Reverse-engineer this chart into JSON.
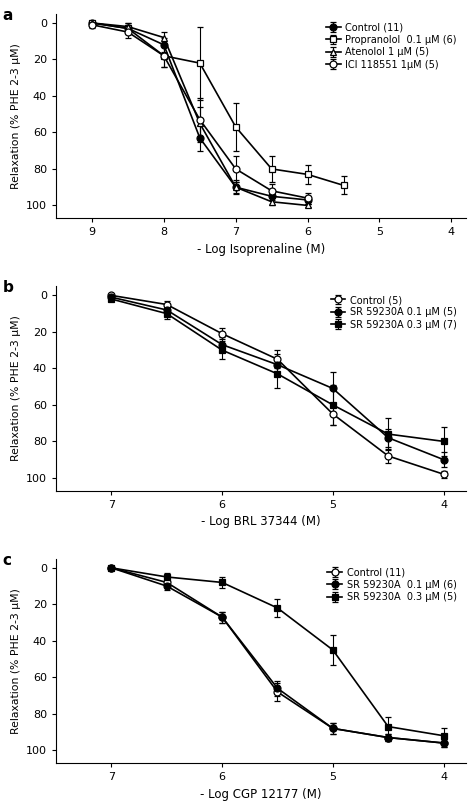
{
  "panel_a": {
    "title": "a",
    "xlabel": "- Log Isoprenaline (M)",
    "ylabel": "Relaxation (% PHE 2-3 μM)",
    "xlim_min": 4,
    "xlim_max": 9.5,
    "ylim_bottom": 107,
    "ylim_top": -5,
    "xticks": [
      9,
      8,
      7,
      6,
      5,
      4
    ],
    "yticks": [
      0,
      20,
      40,
      60,
      80,
      100
    ],
    "series": [
      {
        "label": "Control (11)",
        "marker": "o",
        "fillstyle": "full",
        "x": [
          9.0,
          8.5,
          8.0,
          7.5,
          7.0,
          6.5,
          6.0
        ],
        "y": [
          0,
          3,
          12,
          63,
          90,
          95,
          97
        ],
        "yerr": [
          1,
          2,
          4,
          7,
          3,
          2,
          2
        ]
      },
      {
        "label": "Propranolol  0.1 μM (6)",
        "marker": "s",
        "fillstyle": "none",
        "x": [
          9.0,
          8.5,
          8.0,
          7.5,
          7.0,
          6.5,
          6.0,
          5.5
        ],
        "y": [
          0,
          3,
          18,
          22,
          57,
          80,
          83,
          89
        ],
        "yerr": [
          1,
          3,
          6,
          20,
          13,
          7,
          5,
          5
        ]
      },
      {
        "label": "Atenolol 1 μM (5)",
        "marker": "^",
        "fillstyle": "none",
        "x": [
          9.0,
          8.5,
          8.0,
          7.5,
          7.0,
          6.5,
          6.0
        ],
        "y": [
          0,
          2,
          8,
          55,
          90,
          98,
          100
        ],
        "yerr": [
          1,
          2,
          3,
          9,
          4,
          2,
          1
        ]
      },
      {
        "label": "ICI 118551 1μM (5)",
        "marker": "o",
        "fillstyle": "none",
        "x": [
          9.0,
          8.5,
          8.0,
          7.5,
          7.0,
          6.5,
          6.0
        ],
        "y": [
          1,
          5,
          18,
          53,
          80,
          92,
          96
        ],
        "yerr": [
          2,
          3,
          6,
          12,
          7,
          4,
          3
        ]
      }
    ]
  },
  "panel_b": {
    "title": "b",
    "xlabel": "- Log BRL 37344 (M)",
    "ylabel": "Relaxation (% PHE 2-3 μM)",
    "xlim_min": 4,
    "xlim_max": 7.5,
    "ylim_bottom": 107,
    "ylim_top": -5,
    "xticks": [
      7,
      6,
      5,
      4
    ],
    "yticks": [
      0,
      20,
      40,
      60,
      80,
      100
    ],
    "series": [
      {
        "label": "Control (5)",
        "marker": "o",
        "fillstyle": "none",
        "x": [
          7.0,
          6.5,
          6.0,
          5.5,
          5.0,
          4.5,
          4.0
        ],
        "y": [
          0,
          5,
          21,
          35,
          65,
          88,
          98
        ],
        "yerr": [
          1,
          2,
          3,
          5,
          6,
          4,
          2
        ]
      },
      {
        "label": "SR 59230A 0.1 μM (5)",
        "marker": "o",
        "fillstyle": "full",
        "x": [
          7.0,
          6.5,
          6.0,
          5.5,
          5.0,
          4.5,
          4.0
        ],
        "y": [
          1,
          8,
          27,
          38,
          51,
          78,
          90
        ],
        "yerr": [
          1,
          3,
          4,
          6,
          9,
          5,
          4
        ]
      },
      {
        "label": "SR 59230A 0.3 μM (7)",
        "marker": "s",
        "fillstyle": "full",
        "x": [
          7.0,
          6.5,
          6.0,
          5.5,
          5.0,
          4.5,
          4.0
        ],
        "y": [
          2,
          10,
          30,
          43,
          60,
          76,
          80
        ],
        "yerr": [
          1,
          3,
          5,
          8,
          11,
          9,
          8
        ]
      }
    ]
  },
  "panel_c": {
    "title": "c",
    "xlabel": "- Log CGP 12177 (M)",
    "ylabel": "Relaxation (% PHE 2-3 μM)",
    "xlim_min": 4,
    "xlim_max": 7.5,
    "ylim_bottom": 107,
    "ylim_top": -5,
    "xticks": [
      7,
      6,
      5,
      4
    ],
    "yticks": [
      0,
      20,
      40,
      60,
      80,
      100
    ],
    "series": [
      {
        "label": "Control (11)",
        "marker": "o",
        "fillstyle": "none",
        "x": [
          7.0,
          6.5,
          6.0,
          5.5,
          5.0,
          4.5,
          4.0
        ],
        "y": [
          0,
          8,
          27,
          68,
          88,
          93,
          96
        ],
        "yerr": [
          1,
          2,
          3,
          5,
          3,
          2,
          2
        ]
      },
      {
        "label": "SR 59230A  0.1 μM (6)",
        "marker": "o",
        "fillstyle": "full",
        "x": [
          7.0,
          6.5,
          6.0,
          5.5,
          5.0,
          4.5,
          4.0
        ],
        "y": [
          0,
          10,
          27,
          66,
          88,
          93,
          96
        ],
        "yerr": [
          1,
          2,
          3,
          4,
          3,
          2,
          2
        ]
      },
      {
        "label": "SR 59230A  0.3 μM (5)",
        "marker": "s",
        "fillstyle": "full",
        "x": [
          7.0,
          6.5,
          6.0,
          5.5,
          5.0,
          4.5,
          4.0
        ],
        "y": [
          0,
          5,
          8,
          22,
          45,
          87,
          92
        ],
        "yerr": [
          1,
          2,
          3,
          5,
          8,
          5,
          4
        ]
      }
    ]
  }
}
